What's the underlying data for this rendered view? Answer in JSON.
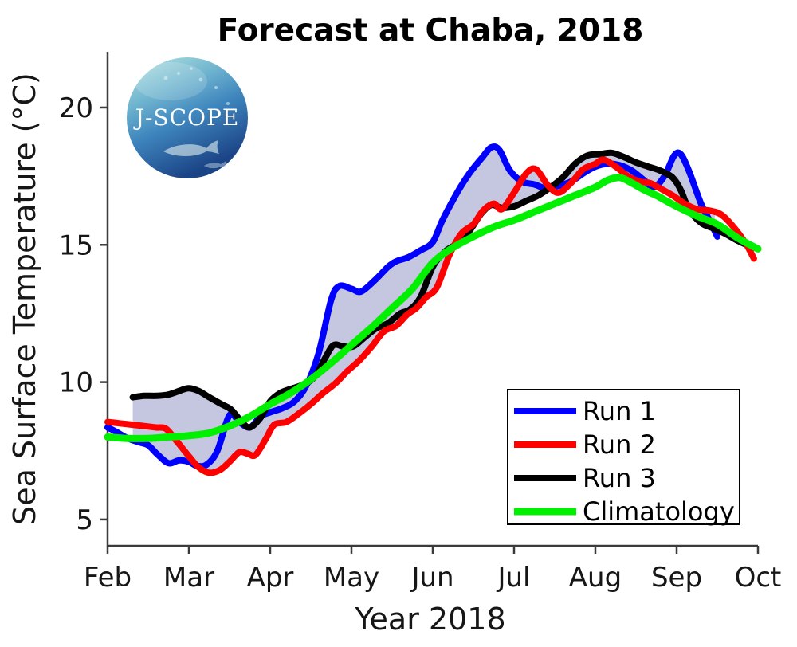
{
  "figure": {
    "background": "#ffffff"
  },
  "logo": {
    "text": "J-SCOPE"
  },
  "chart_data": {
    "type": "line",
    "title": "Forecast at Chaba, 2018",
    "xlabel": "Year 2018",
    "ylabel": "Sea Surface Temperature (°C)",
    "x_units": "month of 2018 (2=Feb ... 10=Oct)",
    "y_units": "°C",
    "xlim": [
      2,
      10
    ],
    "ylim": [
      4.04,
      22.03
    ],
    "grid": false,
    "axis_color": "#3b3b3b",
    "x_tick_values": [
      2,
      3,
      4,
      5,
      6,
      7,
      8,
      9,
      10
    ],
    "x_tick_labels": [
      "Feb",
      "Mar",
      "Apr",
      "May",
      "Jun",
      "Jul",
      "Aug",
      "Sep",
      "Oct"
    ],
    "y_ticks": [
      5,
      10,
      15,
      20
    ],
    "band": {
      "name": "ensemble spread (min-max of runs)",
      "color": "#c5c6e0",
      "x_range": [
        2.31,
        9.5
      ]
    },
    "legend": {
      "position": "lower right",
      "entries": [
        {
          "label": "Run 1",
          "color": "#0000ff"
        },
        {
          "label": "Run 2",
          "color": "#ff0000"
        },
        {
          "label": "Run 3",
          "color": "#000000"
        },
        {
          "label": "Climatology",
          "color": "#00f000"
        }
      ]
    },
    "series": [
      {
        "name": "Run 1",
        "color": "#0000ff",
        "width": 8,
        "in_band": true,
        "points": [
          [
            2.0,
            8.35
          ],
          [
            2.1,
            8.2
          ],
          [
            2.25,
            7.95
          ],
          [
            2.4,
            7.8
          ],
          [
            2.5,
            7.7
          ],
          [
            2.62,
            7.35
          ],
          [
            2.75,
            7.05
          ],
          [
            2.88,
            7.15
          ],
          [
            3.0,
            7.1
          ],
          [
            3.1,
            6.95
          ],
          [
            3.22,
            7.0
          ],
          [
            3.35,
            7.5
          ],
          [
            3.5,
            8.8
          ],
          [
            3.62,
            8.55
          ],
          [
            3.75,
            8.35
          ],
          [
            3.88,
            8.75
          ],
          [
            4.0,
            8.9
          ],
          [
            4.15,
            9.05
          ],
          [
            4.3,
            9.3
          ],
          [
            4.45,
            9.9
          ],
          [
            4.6,
            11.1
          ],
          [
            4.75,
            13.0
          ],
          [
            4.85,
            13.5
          ],
          [
            5.0,
            13.4
          ],
          [
            5.12,
            13.3
          ],
          [
            5.3,
            13.75
          ],
          [
            5.45,
            14.2
          ],
          [
            5.55,
            14.4
          ],
          [
            5.7,
            14.55
          ],
          [
            5.85,
            14.8
          ],
          [
            6.0,
            15.1
          ],
          [
            6.12,
            15.9
          ],
          [
            6.3,
            16.9
          ],
          [
            6.45,
            17.6
          ],
          [
            6.6,
            18.15
          ],
          [
            6.72,
            18.55
          ],
          [
            6.82,
            18.45
          ],
          [
            6.95,
            17.7
          ],
          [
            7.1,
            17.3
          ],
          [
            7.25,
            17.2
          ],
          [
            7.4,
            17.05
          ],
          [
            7.55,
            17.15
          ],
          [
            7.7,
            17.3
          ],
          [
            7.85,
            17.6
          ],
          [
            8.0,
            17.85
          ],
          [
            8.15,
            17.95
          ],
          [
            8.3,
            17.9
          ],
          [
            8.45,
            17.7
          ],
          [
            8.6,
            17.35
          ],
          [
            8.72,
            17.1
          ],
          [
            8.85,
            17.5
          ],
          [
            8.97,
            18.25
          ],
          [
            9.05,
            18.3
          ],
          [
            9.15,
            17.7
          ],
          [
            9.3,
            16.5
          ],
          [
            9.42,
            15.8
          ],
          [
            9.5,
            15.3
          ]
        ]
      },
      {
        "name": "Run 2",
        "color": "#ff0000",
        "width": 8,
        "in_band": true,
        "points": [
          [
            2.0,
            8.55
          ],
          [
            2.15,
            8.5
          ],
          [
            2.3,
            8.45
          ],
          [
            2.45,
            8.4
          ],
          [
            2.6,
            8.35
          ],
          [
            2.72,
            8.3
          ],
          [
            2.85,
            7.85
          ],
          [
            3.0,
            7.3
          ],
          [
            3.12,
            6.9
          ],
          [
            3.25,
            6.7
          ],
          [
            3.38,
            6.8
          ],
          [
            3.5,
            7.1
          ],
          [
            3.62,
            7.45
          ],
          [
            3.72,
            7.4
          ],
          [
            3.82,
            7.35
          ],
          [
            3.95,
            7.95
          ],
          [
            4.05,
            8.45
          ],
          [
            4.2,
            8.55
          ],
          [
            4.35,
            8.85
          ],
          [
            4.5,
            9.2
          ],
          [
            4.65,
            9.6
          ],
          [
            4.8,
            9.95
          ],
          [
            4.95,
            10.4
          ],
          [
            5.1,
            10.8
          ],
          [
            5.25,
            11.3
          ],
          [
            5.4,
            11.85
          ],
          [
            5.55,
            12.05
          ],
          [
            5.68,
            12.45
          ],
          [
            5.8,
            12.7
          ],
          [
            5.92,
            13.1
          ],
          [
            6.05,
            13.45
          ],
          [
            6.2,
            14.6
          ],
          [
            6.35,
            15.4
          ],
          [
            6.5,
            15.75
          ],
          [
            6.62,
            16.25
          ],
          [
            6.75,
            16.5
          ],
          [
            6.85,
            16.3
          ],
          [
            7.0,
            16.9
          ],
          [
            7.15,
            17.6
          ],
          [
            7.27,
            17.75
          ],
          [
            7.42,
            17.15
          ],
          [
            7.55,
            16.9
          ],
          [
            7.7,
            17.25
          ],
          [
            7.85,
            17.75
          ],
          [
            8.0,
            17.95
          ],
          [
            8.1,
            18.1
          ],
          [
            8.25,
            17.85
          ],
          [
            8.4,
            17.5
          ],
          [
            8.55,
            17.3
          ],
          [
            8.67,
            17.25
          ],
          [
            8.8,
            17.05
          ],
          [
            8.95,
            16.8
          ],
          [
            9.1,
            16.5
          ],
          [
            9.25,
            16.3
          ],
          [
            9.4,
            16.25
          ],
          [
            9.55,
            16.1
          ],
          [
            9.7,
            15.65
          ],
          [
            9.85,
            15.05
          ],
          [
            9.95,
            14.5
          ]
        ]
      },
      {
        "name": "Run 3",
        "color": "#000000",
        "width": 8,
        "in_band": true,
        "points": [
          [
            2.31,
            9.45
          ],
          [
            2.45,
            9.5
          ],
          [
            2.6,
            9.5
          ],
          [
            2.75,
            9.55
          ],
          [
            2.9,
            9.7
          ],
          [
            3.0,
            9.78
          ],
          [
            3.12,
            9.68
          ],
          [
            3.25,
            9.45
          ],
          [
            3.4,
            9.2
          ],
          [
            3.52,
            9.0
          ],
          [
            3.65,
            8.55
          ],
          [
            3.75,
            8.35
          ],
          [
            3.88,
            8.7
          ],
          [
            4.0,
            9.3
          ],
          [
            4.12,
            9.6
          ],
          [
            4.25,
            9.75
          ],
          [
            4.4,
            9.9
          ],
          [
            4.55,
            10.2
          ],
          [
            4.68,
            10.9
          ],
          [
            4.78,
            11.35
          ],
          [
            4.9,
            11.3
          ],
          [
            5.02,
            11.3
          ],
          [
            5.15,
            11.6
          ],
          [
            5.3,
            11.95
          ],
          [
            5.45,
            12.15
          ],
          [
            5.6,
            12.5
          ],
          [
            5.72,
            12.65
          ],
          [
            5.85,
            13.1
          ],
          [
            6.0,
            14.2
          ],
          [
            6.15,
            14.75
          ],
          [
            6.3,
            15.05
          ],
          [
            6.45,
            15.5
          ],
          [
            6.6,
            16.15
          ],
          [
            6.72,
            16.45
          ],
          [
            6.85,
            16.35
          ],
          [
            7.0,
            16.4
          ],
          [
            7.15,
            16.6
          ],
          [
            7.3,
            16.8
          ],
          [
            7.45,
            17.1
          ],
          [
            7.6,
            17.45
          ],
          [
            7.75,
            17.95
          ],
          [
            7.9,
            18.25
          ],
          [
            8.05,
            18.3
          ],
          [
            8.2,
            18.35
          ],
          [
            8.35,
            18.2
          ],
          [
            8.5,
            18.0
          ],
          [
            8.65,
            17.85
          ],
          [
            8.8,
            17.7
          ],
          [
            8.95,
            17.45
          ],
          [
            9.05,
            17.0
          ],
          [
            9.15,
            16.3
          ],
          [
            9.3,
            15.8
          ],
          [
            9.45,
            15.6
          ],
          [
            9.6,
            15.4
          ],
          [
            9.75,
            15.15
          ],
          [
            9.9,
            14.95
          ],
          [
            10.0,
            14.85
          ]
        ]
      },
      {
        "name": "Climatology",
        "color": "#00f000",
        "width": 9,
        "in_band": false,
        "points": [
          [
            2.0,
            8.0
          ],
          [
            2.25,
            7.95
          ],
          [
            2.5,
            7.95
          ],
          [
            2.75,
            8.0
          ],
          [
            3.0,
            8.05
          ],
          [
            3.25,
            8.15
          ],
          [
            3.5,
            8.4
          ],
          [
            3.75,
            8.75
          ],
          [
            4.0,
            9.2
          ],
          [
            4.25,
            9.6
          ],
          [
            4.5,
            10.1
          ],
          [
            4.75,
            10.7
          ],
          [
            5.0,
            11.35
          ],
          [
            5.25,
            12.0
          ],
          [
            5.5,
            12.7
          ],
          [
            5.75,
            13.4
          ],
          [
            6.0,
            14.35
          ],
          [
            6.25,
            14.9
          ],
          [
            6.5,
            15.3
          ],
          [
            6.75,
            15.65
          ],
          [
            7.0,
            15.9
          ],
          [
            7.25,
            16.2
          ],
          [
            7.5,
            16.5
          ],
          [
            7.75,
            16.8
          ],
          [
            8.0,
            17.1
          ],
          [
            8.15,
            17.35
          ],
          [
            8.3,
            17.45
          ],
          [
            8.45,
            17.25
          ],
          [
            8.6,
            17.0
          ],
          [
            8.75,
            16.8
          ],
          [
            9.0,
            16.4
          ],
          [
            9.25,
            16.05
          ],
          [
            9.5,
            15.75
          ],
          [
            9.75,
            15.25
          ],
          [
            10.0,
            14.85
          ]
        ]
      }
    ]
  }
}
